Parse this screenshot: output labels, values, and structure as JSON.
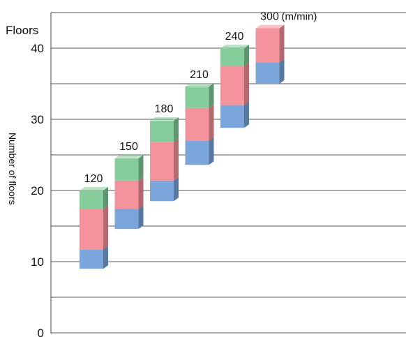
{
  "chart_data": {
    "type": "bar",
    "stacked": true,
    "floating": true,
    "y_unit_label": "Floors",
    "ylabel": "Number of floors",
    "ylim": [
      0,
      45
    ],
    "yticks": [
      0,
      10,
      20,
      30,
      40
    ],
    "grid": true,
    "unit_suffix": "(m/min)",
    "categories": [
      "120",
      "150",
      "180",
      "210",
      "240",
      "300"
    ],
    "series": [
      {
        "color": "#7aa6dc",
        "ranges": [
          [
            9,
            11.7
          ],
          [
            14.6,
            17.4
          ],
          [
            18.5,
            21.4
          ],
          [
            23.6,
            27
          ],
          [
            28.8,
            32
          ],
          [
            35,
            38
          ]
        ]
      },
      {
        "color": "#f4939b",
        "ranges": [
          [
            11.7,
            17.4
          ],
          [
            17.4,
            21.4
          ],
          [
            21.4,
            26.8
          ],
          [
            27,
            31.6
          ],
          [
            32,
            37.5
          ],
          [
            38,
            42.8
          ]
        ]
      },
      {
        "color": "#86cd9c",
        "ranges": [
          [
            17.4,
            20
          ],
          [
            21.4,
            24.5
          ],
          [
            26.8,
            29.8
          ],
          [
            31.6,
            34.6
          ],
          [
            37.5,
            40
          ],
          [
            42.8,
            42.8
          ]
        ]
      }
    ]
  }
}
